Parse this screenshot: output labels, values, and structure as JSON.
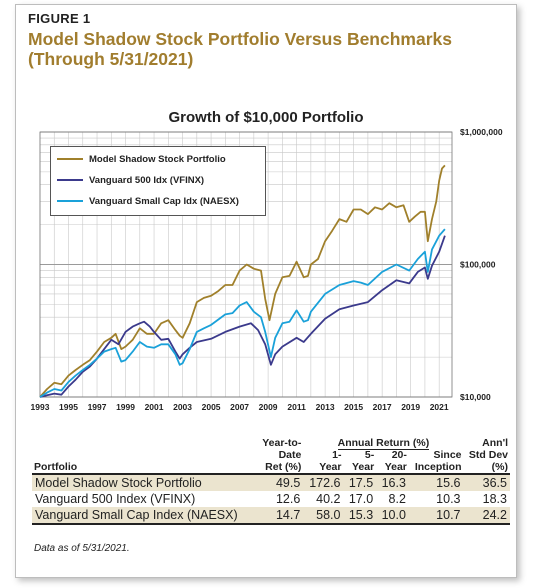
{
  "figure": {
    "label": "FIGURE 1",
    "title": "Model Shadow Stock Portfolio Versus Benchmarks (Through 5/31/2021)"
  },
  "chart_data": {
    "type": "line",
    "title": "Growth of $10,000 Portfolio",
    "y_scale": "log",
    "ylim": [
      10000,
      1000000
    ],
    "xlim": [
      1993,
      2021.9
    ],
    "y_ticks": [
      {
        "value": 10000,
        "label": "$10,000"
      },
      {
        "value": 100000,
        "label": "$100,000"
      },
      {
        "value": 1000000,
        "label": "$1,000,000"
      }
    ],
    "x_ticks": [
      "1993",
      "1995",
      "1997",
      "1999",
      "2001",
      "2003",
      "2005",
      "2007",
      "2009",
      "2011",
      "2013",
      "2015",
      "2017",
      "2019",
      "2021"
    ],
    "grid": true,
    "legend_position": "top-left",
    "series": [
      {
        "name": "Model Shadow Stock Portfolio",
        "color": "#a0802b",
        "x": [
          1993,
          1993.5,
          1994,
          1994.5,
          1995,
          1995.5,
          1996,
          1996.5,
          1997,
          1997.5,
          1998,
          1998.3,
          1998.7,
          1999,
          1999.5,
          2000,
          2000.5,
          2001,
          2001.5,
          2002,
          2002.5,
          2002.8,
          2003,
          2003.5,
          2004,
          2004.5,
          2005,
          2005.5,
          2006,
          2006.5,
          2007,
          2007.5,
          2008,
          2008.5,
          2008.8,
          2009.1,
          2009.5,
          2010,
          2010.5,
          2011,
          2011.5,
          2011.8,
          2012,
          2012.5,
          2013,
          2013.5,
          2014,
          2014.5,
          2015,
          2015.5,
          2016,
          2016.5,
          2017,
          2017.5,
          2018,
          2018.5,
          2018.9,
          2019.3,
          2019.7,
          2020,
          2020.2,
          2020.5,
          2020.8,
          2021,
          2021.2,
          2021.4
        ],
        "y": [
          10000,
          11500,
          12800,
          12500,
          14500,
          16000,
          17500,
          19000,
          22000,
          26000,
          28000,
          30000,
          23000,
          24000,
          27000,
          33000,
          30000,
          30000,
          36000,
          38000,
          32000,
          29000,
          28000,
          36000,
          52000,
          56000,
          58000,
          63000,
          70000,
          70000,
          90000,
          100000,
          93000,
          90000,
          55000,
          38000,
          60000,
          80000,
          82000,
          105000,
          80000,
          82000,
          100000,
          110000,
          150000,
          180000,
          220000,
          210000,
          260000,
          260000,
          240000,
          270000,
          260000,
          290000,
          270000,
          280000,
          210000,
          230000,
          250000,
          250000,
          150000,
          220000,
          300000,
          430000,
          530000,
          560000
        ]
      },
      {
        "name": "Vanguard 500 Idx (VFINX)",
        "color": "#3b3a8c",
        "x": [
          1993,
          1993.5,
          1994,
          1994.5,
          1995,
          1995.5,
          1996,
          1996.5,
          1997,
          1997.5,
          1998,
          1998.5,
          1999,
          1999.5,
          2000,
          2000.3,
          2000.7,
          2001,
          2001.5,
          2002,
          2002.5,
          2002.8,
          2003,
          2003.5,
          2004,
          2005,
          2006,
          2007,
          2007.8,
          2008.3,
          2008.8,
          2009.2,
          2009.5,
          2010,
          2011,
          2011.5,
          2012,
          2013,
          2014,
          2015,
          2016,
          2017,
          2018,
          2018.9,
          2019.5,
          2020,
          2020.2,
          2020.5,
          2021,
          2021.4
        ],
        "y": [
          10000,
          10300,
          10600,
          10400,
          12000,
          13500,
          15500,
          17000,
          19500,
          23000,
          27000,
          25000,
          31000,
          34000,
          36000,
          37000,
          34000,
          31000,
          27000,
          27500,
          22000,
          19500,
          21000,
          23500,
          26000,
          27500,
          31000,
          34000,
          36000,
          32000,
          25000,
          17500,
          21000,
          24000,
          28000,
          26000,
          30000,
          39000,
          46000,
          49000,
          52000,
          64000,
          76000,
          72000,
          88000,
          95000,
          78000,
          98000,
          125000,
          165000
        ]
      },
      {
        "name": "Vanguard Small Cap Idx (NAESX)",
        "color": "#1aa1d9",
        "x": [
          1993,
          1993.5,
          1994,
          1994.5,
          1995,
          1995.5,
          1996,
          1996.5,
          1997,
          1997.5,
          1998,
          1998.3,
          1998.7,
          1999,
          1999.5,
          2000,
          2000.5,
          2001,
          2001.5,
          2002,
          2002.5,
          2002.8,
          2003,
          2003.5,
          2004,
          2004.5,
          2005,
          2006,
          2006.5,
          2007,
          2007.5,
          2008,
          2008.5,
          2008.8,
          2009.2,
          2009.5,
          2010,
          2010.5,
          2011,
          2011.5,
          2011.8,
          2012,
          2013,
          2014,
          2015,
          2015.5,
          2016,
          2017,
          2018,
          2018.9,
          2019.5,
          2020,
          2020.2,
          2020.5,
          2021,
          2021.4
        ],
        "y": [
          10000,
          10800,
          11500,
          11200,
          13000,
          14500,
          16000,
          17500,
          19500,
          22000,
          23000,
          23500,
          18500,
          19000,
          22000,
          26000,
          24000,
          23500,
          25000,
          25000,
          21000,
          17500,
          18000,
          23000,
          31000,
          33000,
          35000,
          42000,
          43000,
          49000,
          52000,
          44000,
          40000,
          31000,
          20000,
          28000,
          36000,
          37000,
          45000,
          37000,
          38000,
          44000,
          60000,
          70000,
          75000,
          73000,
          70000,
          88000,
          100000,
          90000,
          110000,
          125000,
          88000,
          130000,
          165000,
          185000
        ]
      }
    ]
  },
  "table": {
    "header_top": {
      "ytd": "Year-to-",
      "annual": "Annual Return (%)",
      "std": "Ann'l"
    },
    "header_mid": {
      "ytd": "Date",
      "y1": "1-",
      "y5": "5-",
      "y20": "20-",
      "since": "Since",
      "std": "Std Dev"
    },
    "header_bot": {
      "portfolio": "Portfolio",
      "ytd": "Ret (%)",
      "y1": "Year",
      "y5": "Year",
      "y20": "Year",
      "since": "Inception",
      "std": "(%)"
    },
    "rows": [
      {
        "name": "Model Shadow Stock Portfolio",
        "ytd": "49.5",
        "y1": "172.6",
        "y5": "17.5",
        "y20": "16.3",
        "since": "15.6",
        "std": "36.5"
      },
      {
        "name": "Vanguard 500 Index (VFINX)",
        "ytd": "12.6",
        "y1": "40.2",
        "y5": "17.0",
        "y20": "8.2",
        "since": "10.3",
        "std": "18.3"
      },
      {
        "name": "Vanguard Small Cap Index (NAESX)",
        "ytd": "14.7",
        "y1": "58.0",
        "y5": "15.3",
        "y20": "10.0",
        "since": "10.7",
        "std": "24.2"
      }
    ]
  },
  "footnote": "Data as of 5/31/2021."
}
